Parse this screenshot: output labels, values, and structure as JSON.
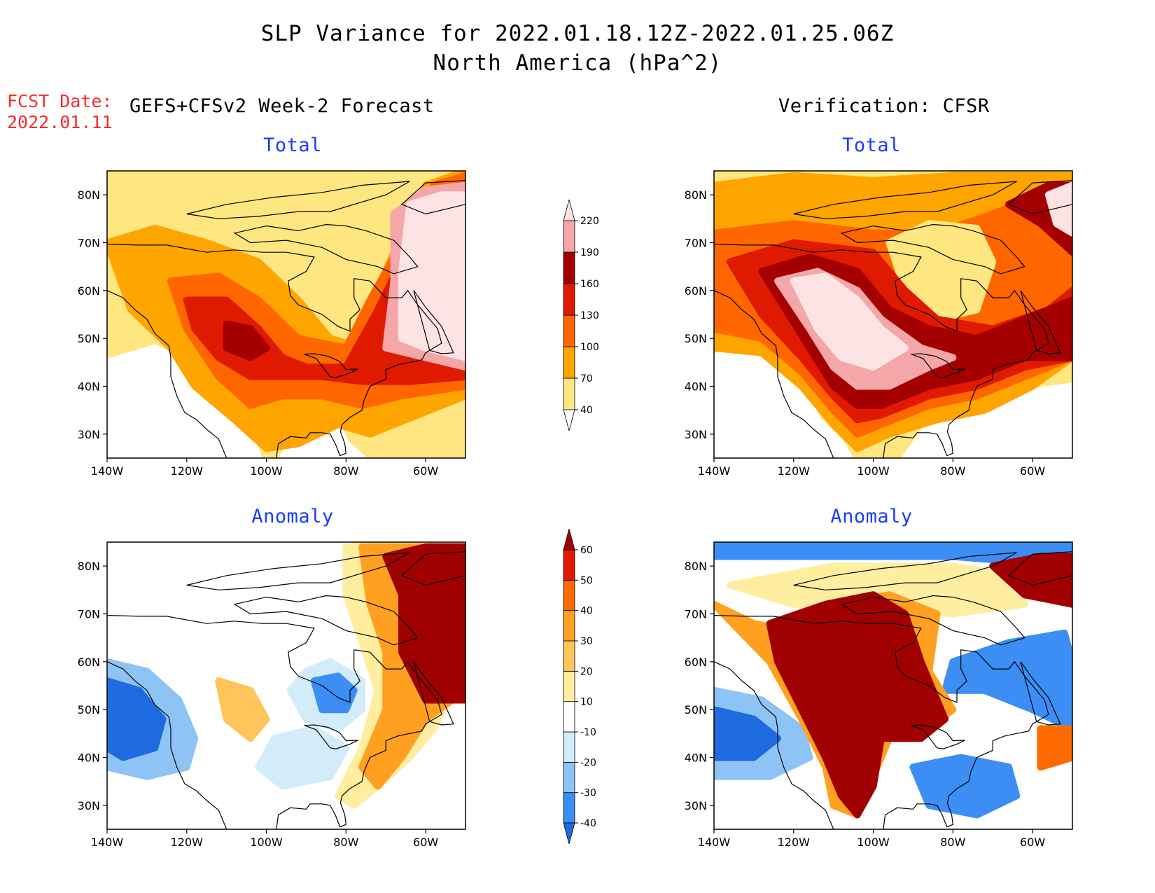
{
  "title": {
    "line1": "SLP Variance for 2022.01.18.12Z-2022.01.25.06Z",
    "line2": "North America (hPa^2)"
  },
  "fcst_date": {
    "label": "FCST Date:",
    "value": "2022.01.11"
  },
  "columns": {
    "left_header": "GEFS+CFSv2 Week-2 Forecast",
    "right_header": "Verification: CFSR"
  },
  "panels": {
    "forecast_total": {
      "subtitle": "Total"
    },
    "verification_total": {
      "subtitle": "Total"
    },
    "forecast_anomaly": {
      "subtitle": "Anomaly"
    },
    "verification_anomaly": {
      "subtitle": "Anomaly"
    }
  },
  "axes": {
    "lat_labels": [
      "30N",
      "40N",
      "50N",
      "60N",
      "70N",
      "80N"
    ],
    "lat_values": [
      30,
      40,
      50,
      60,
      70,
      80
    ],
    "lon_labels": [
      "140W",
      "120W",
      "100W",
      "80W",
      "60W"
    ],
    "lon_values": [
      -140,
      -120,
      -100,
      -80,
      -60
    ],
    "lat_range": [
      25,
      85
    ],
    "lon_range": [
      -140,
      -50
    ]
  },
  "colorbars": {
    "total": {
      "labels": [
        "40",
        "70",
        "100",
        "130",
        "160",
        "190",
        "220"
      ],
      "colors": [
        "#ffffff",
        "#ffe680",
        "#ffa500",
        "#ff6600",
        "#e01a00",
        "#a50000",
        "#f4a6a8",
        "#fde3e4"
      ]
    },
    "anomaly": {
      "labels": [
        "-40",
        "-30",
        "-20",
        "-10",
        "10",
        "20",
        "30",
        "40",
        "50",
        "60"
      ],
      "colors": [
        "#1e6be0",
        "#3c8ef5",
        "#8ec3f5",
        "#d2ecfa",
        "#ffffff",
        "#ffeea0",
        "#ffc45a",
        "#ffa020",
        "#ff6a00",
        "#e01a00",
        "#a00000"
      ]
    }
  }
}
